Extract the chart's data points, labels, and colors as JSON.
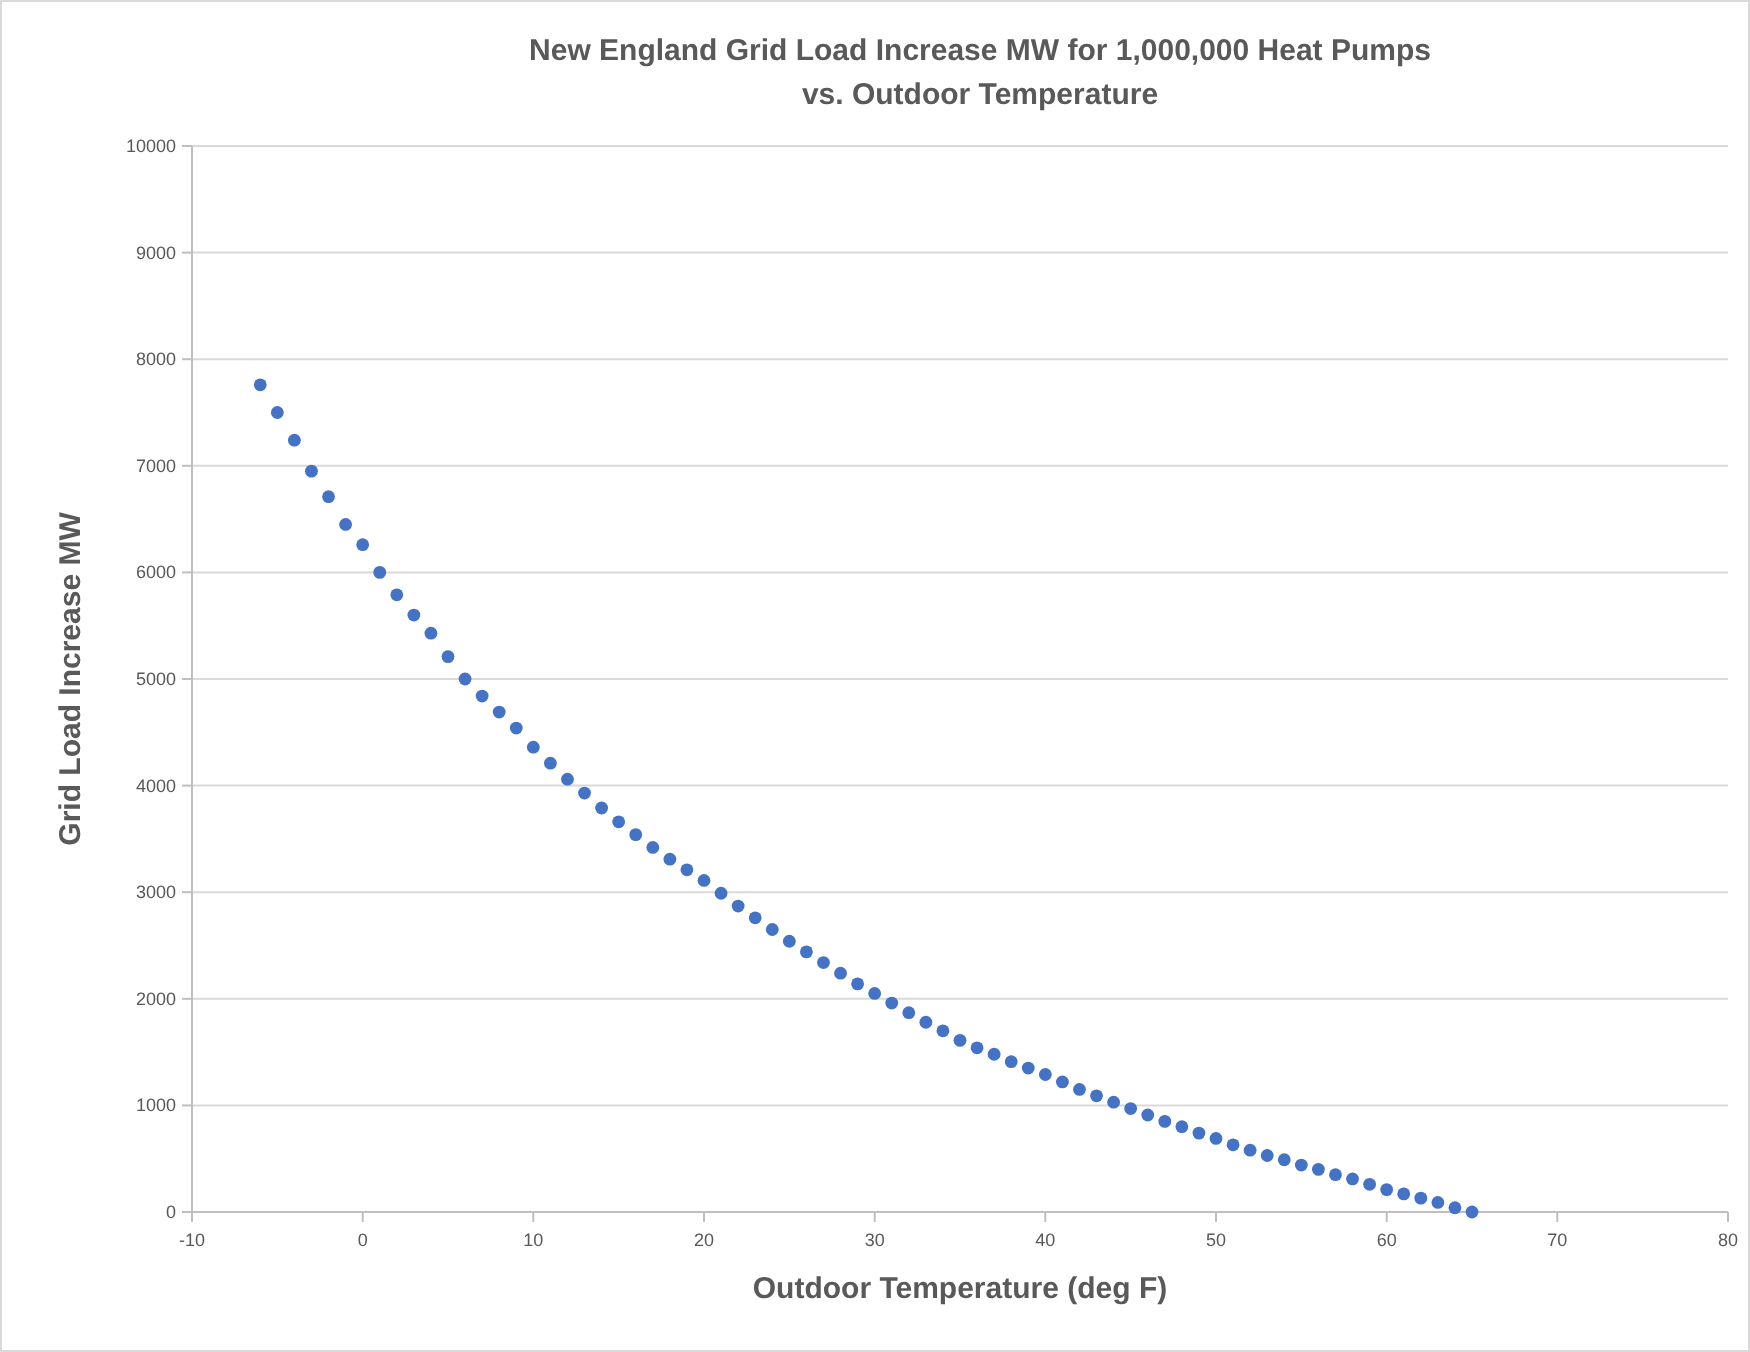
{
  "chart_data": {
    "type": "scatter",
    "title": "New England Grid Load Increase MW for 1,000,000 Heat Pumps\nvs. Outdoor Temperature",
    "xlabel": "Outdoor Temperature (deg F)",
    "ylabel": "Grid Load Increase MW",
    "x": [
      -6,
      -5,
      -4,
      -3,
      -2,
      -1,
      0,
      1,
      2,
      3,
      4,
      5,
      6,
      7,
      8,
      9,
      10,
      11,
      12,
      13,
      14,
      15,
      16,
      17,
      18,
      19,
      20,
      21,
      22,
      23,
      24,
      25,
      26,
      27,
      28,
      29,
      30,
      31,
      32,
      33,
      34,
      35,
      36,
      37,
      38,
      39,
      40,
      41,
      42,
      43,
      44,
      45,
      46,
      47,
      48,
      49,
      50,
      51,
      52,
      53,
      54,
      55,
      56,
      57,
      58,
      59,
      60,
      61,
      62,
      63,
      64,
      65
    ],
    "series": [
      {
        "color": "#4472c4",
        "values": [
          7760,
          7500,
          7240,
          6950,
          6710,
          6450,
          6260,
          6000,
          5790,
          5600,
          5430,
          5210,
          5000,
          4840,
          4690,
          4540,
          4360,
          4210,
          4060,
          3930,
          3790,
          3660,
          3540,
          3420,
          3310,
          3210,
          3110,
          2990,
          2870,
          2760,
          2650,
          2540,
          2440,
          2340,
          2240,
          2140,
          2050,
          1960,
          1870,
          1780,
          1700,
          1610,
          1540,
          1480,
          1410,
          1350,
          1290,
          1220,
          1150,
          1090,
          1030,
          970,
          910,
          850,
          800,
          740,
          690,
          630,
          580,
          530,
          490,
          440,
          400,
          350,
          310,
          260,
          210,
          170,
          130,
          90,
          40,
          0
        ]
      }
    ],
    "xlim": [
      -10,
      80
    ],
    "xticks": [
      -10,
      0,
      10,
      20,
      30,
      40,
      50,
      60,
      70,
      80
    ],
    "ylim": [
      0,
      10000
    ],
    "yticks": [
      0,
      1000,
      2000,
      3000,
      4000,
      5000,
      6000,
      7000,
      8000,
      9000,
      10000
    ],
    "grid": "y",
    "marker": "circle"
  }
}
